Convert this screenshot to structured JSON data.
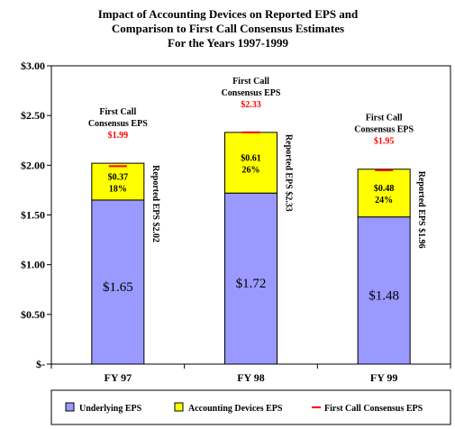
{
  "chart_data": {
    "type": "bar",
    "stacked": true,
    "title_lines": [
      "Impact of Accounting Devices on Reported EPS and",
      "Comparison to First Call Consensus Estimates",
      "For the Years 1997-1999"
    ],
    "categories": [
      "FY 97",
      "FY 98",
      "FY 99"
    ],
    "y_ticks": [
      {
        "value": 0,
        "label": "$-"
      },
      {
        "value": 0.5,
        "label": "$0.50"
      },
      {
        "value": 1.0,
        "label": "$1.00"
      },
      {
        "value": 1.5,
        "label": "$1.50"
      },
      {
        "value": 2.0,
        "label": "$2.00"
      },
      {
        "value": 2.5,
        "label": "$2.50"
      },
      {
        "value": 3.0,
        "label": "$3.00"
      }
    ],
    "ylim": [
      0,
      3.0
    ],
    "series": [
      {
        "name": "Underlying EPS",
        "color": "#9999ff",
        "values": [
          1.65,
          1.72,
          1.48
        ],
        "labels": [
          "$1.65",
          "$1.72",
          "$1.48"
        ]
      },
      {
        "name": "Accounting Devices EPS",
        "color": "#ffff00",
        "values": [
          0.37,
          0.61,
          0.48
        ],
        "labels": [
          "$0.37",
          "$0.61",
          "$0.48"
        ],
        "pct_labels": [
          "18%",
          "26%",
          "24%"
        ]
      }
    ],
    "reported_labels": [
      "Reported EPS $2.02",
      "Reported EPS $2.33",
      "Reported EPS $1.96"
    ],
    "consensus": {
      "name": "First Call Consensus EPS",
      "color": "#ff0000",
      "values": [
        1.99,
        2.33,
        1.95
      ],
      "label_lines": [
        "First Call",
        "Consensus EPS"
      ],
      "value_labels": [
        "$1.99",
        "$2.33",
        "$1.95"
      ]
    },
    "grid": false,
    "legend_position": "bottom"
  }
}
